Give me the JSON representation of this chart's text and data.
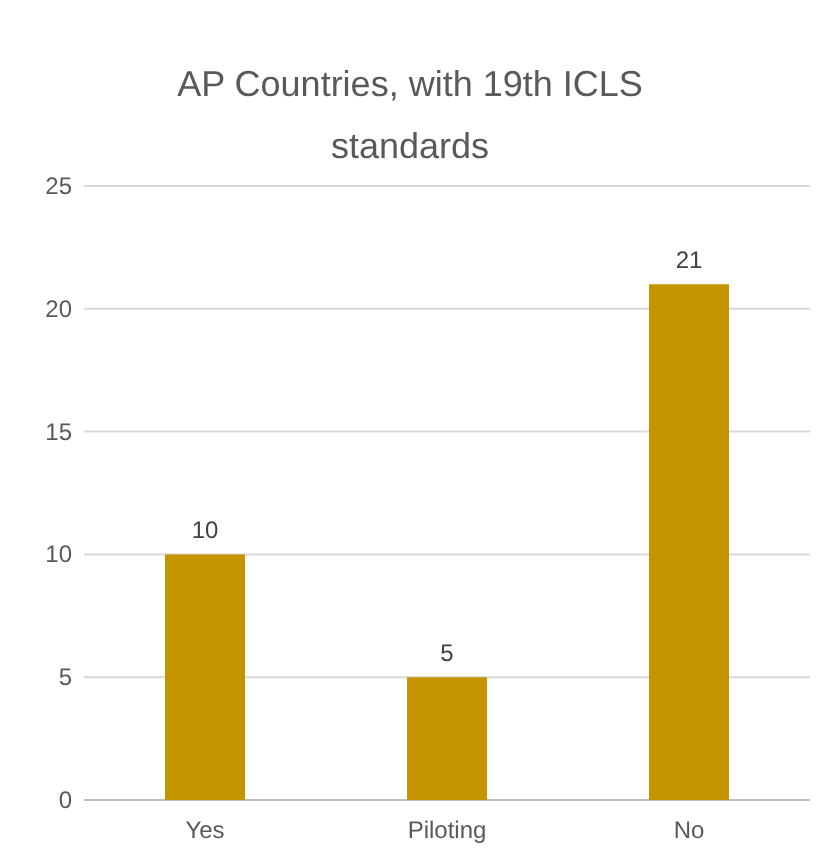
{
  "chart_data": {
    "type": "bar",
    "title": "AP Countries, with 19th ICLS standards",
    "categories": [
      "Yes",
      "Piloting",
      "No"
    ],
    "values": [
      10,
      5,
      21
    ],
    "color": "#c59500",
    "ylim": [
      0,
      25
    ],
    "yticks": [
      0,
      5,
      10,
      15,
      20,
      25
    ],
    "grid": "y",
    "data_labels": true
  }
}
